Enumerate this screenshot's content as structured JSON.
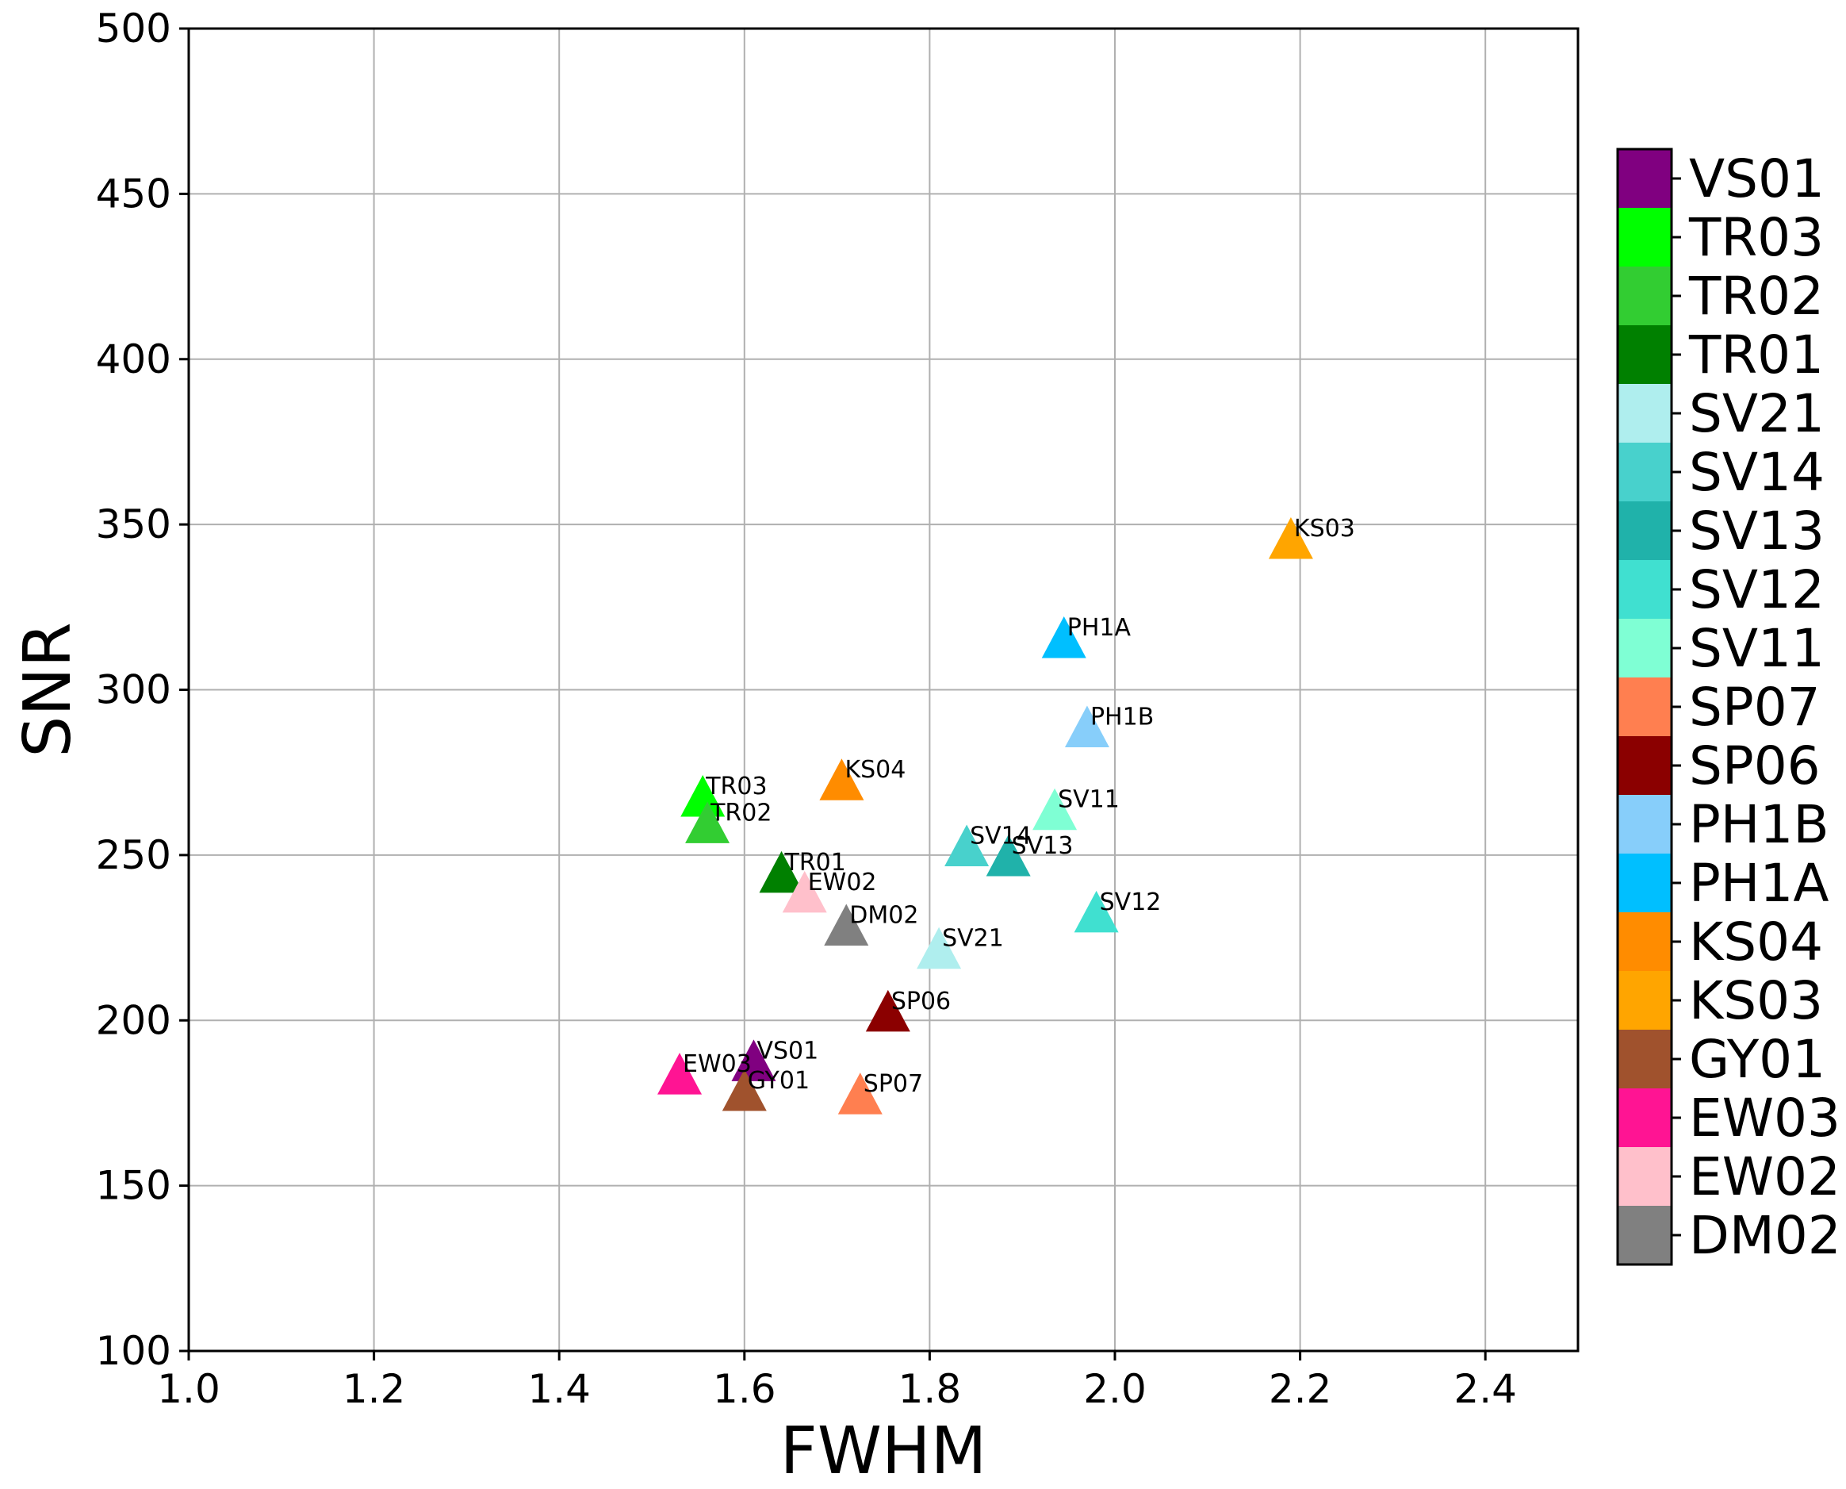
{
  "chart_data": {
    "type": "scatter",
    "title": "",
    "xlabel": "FWHM",
    "ylabel": "SNR",
    "xlim": [
      1.0,
      2.5
    ],
    "ylim": [
      100,
      500
    ],
    "xticks": [
      "1.0",
      "1.2",
      "1.4",
      "1.6",
      "1.8",
      "2.0",
      "2.2",
      "2.4"
    ],
    "yticks": [
      "100",
      "150",
      "200",
      "250",
      "300",
      "350",
      "400",
      "450",
      "500"
    ],
    "grid": true,
    "marker": "triangle",
    "legend_placement": "right colorbar",
    "points": [
      {
        "label": "KS03",
        "x": 2.19,
        "y": 345,
        "color": "#FFA500"
      },
      {
        "label": "PH1A",
        "x": 1.945,
        "y": 315,
        "color": "#00BFFF"
      },
      {
        "label": "PH1B",
        "x": 1.97,
        "y": 288,
        "color": "#87CEFA"
      },
      {
        "label": "KS04",
        "x": 1.705,
        "y": 272,
        "color": "#FF8C00"
      },
      {
        "label": "TR03",
        "x": 1.555,
        "y": 267,
        "color": "#00FF00"
      },
      {
        "label": "TR02",
        "x": 1.56,
        "y": 259,
        "color": "#32CD32"
      },
      {
        "label": "SV11",
        "x": 1.935,
        "y": 263,
        "color": "#7FFFD4"
      },
      {
        "label": "SV14",
        "x": 1.84,
        "y": 252,
        "color": "#48D1CC"
      },
      {
        "label": "SV13",
        "x": 1.885,
        "y": 249,
        "color": "#20B2AA"
      },
      {
        "label": "TR01",
        "x": 1.64,
        "y": 244,
        "color": "#008000"
      },
      {
        "label": "EW02",
        "x": 1.665,
        "y": 238,
        "color": "#FFC0CB"
      },
      {
        "label": "SV12",
        "x": 1.98,
        "y": 232,
        "color": "#40E0D0"
      },
      {
        "label": "DM02",
        "x": 1.71,
        "y": 228,
        "color": "#808080"
      },
      {
        "label": "SV21",
        "x": 1.81,
        "y": 221,
        "color": "#AFEEEE"
      },
      {
        "label": "SP06",
        "x": 1.755,
        "y": 202,
        "color": "#8B0000"
      },
      {
        "label": "VS01",
        "x": 1.61,
        "y": 187,
        "color": "#800080"
      },
      {
        "label": "EW03",
        "x": 1.53,
        "y": 183,
        "color": "#FF1493"
      },
      {
        "label": "GY01",
        "x": 1.6,
        "y": 178,
        "color": "#A0522D"
      },
      {
        "label": "SP07",
        "x": 1.725,
        "y": 177,
        "color": "#FF7F50"
      }
    ],
    "colorbar": [
      {
        "label": "VS01",
        "color": "#800080"
      },
      {
        "label": "TR03",
        "color": "#00FF00"
      },
      {
        "label": "TR02",
        "color": "#32CD32"
      },
      {
        "label": "TR01",
        "color": "#008000"
      },
      {
        "label": "SV21",
        "color": "#AFEEEE"
      },
      {
        "label": "SV14",
        "color": "#48D1CC"
      },
      {
        "label": "SV13",
        "color": "#20B2AA"
      },
      {
        "label": "SV12",
        "color": "#40E0D0"
      },
      {
        "label": "SV11",
        "color": "#7FFFD4"
      },
      {
        "label": "SP07",
        "color": "#FF7F50"
      },
      {
        "label": "SP06",
        "color": "#8B0000"
      },
      {
        "label": "PH1B",
        "color": "#87CEFA"
      },
      {
        "label": "PH1A",
        "color": "#00BFFF"
      },
      {
        "label": "KS04",
        "color": "#FF8C00"
      },
      {
        "label": "KS03",
        "color": "#FFA500"
      },
      {
        "label": "GY01",
        "color": "#A0522D"
      },
      {
        "label": "EW03",
        "color": "#FF1493"
      },
      {
        "label": "EW02",
        "color": "#FFC0CB"
      },
      {
        "label": "DM02",
        "color": "#808080"
      }
    ]
  }
}
